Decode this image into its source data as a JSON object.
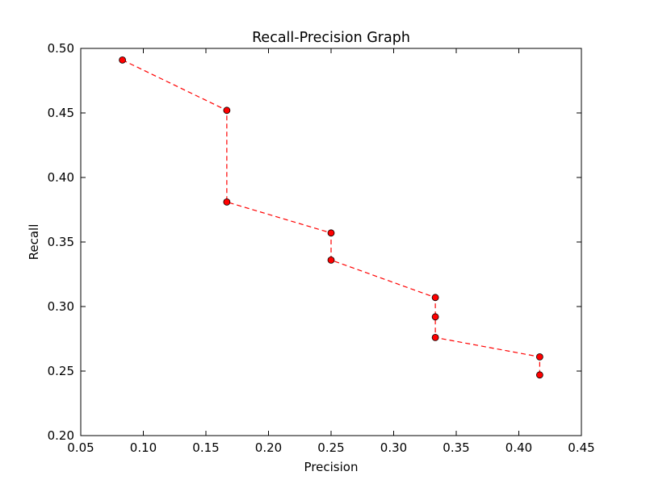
{
  "chart_data": {
    "type": "line",
    "title": "Recall-Precision Graph",
    "xlabel": "Precision",
    "ylabel": "Recall",
    "xlim": [
      0.05,
      0.45
    ],
    "ylim": [
      0.2,
      0.5
    ],
    "xticks": [
      "0.05",
      "0.10",
      "0.15",
      "0.20",
      "0.25",
      "0.30",
      "0.35",
      "0.40",
      "0.45"
    ],
    "yticks": [
      "0.20",
      "0.25",
      "0.30",
      "0.35",
      "0.40",
      "0.45",
      "0.50"
    ],
    "grid": false,
    "series": [
      {
        "color": "#ff0000",
        "line_style": "dashed",
        "marker": "circle",
        "x": [
          0.0833,
          0.1667,
          0.1667,
          0.25,
          0.25,
          0.3333,
          0.3333,
          0.3333,
          0.4167,
          0.4167
        ],
        "y": [
          0.491,
          0.452,
          0.381,
          0.357,
          0.336,
          0.307,
          0.292,
          0.276,
          0.261,
          0.247
        ]
      }
    ]
  }
}
